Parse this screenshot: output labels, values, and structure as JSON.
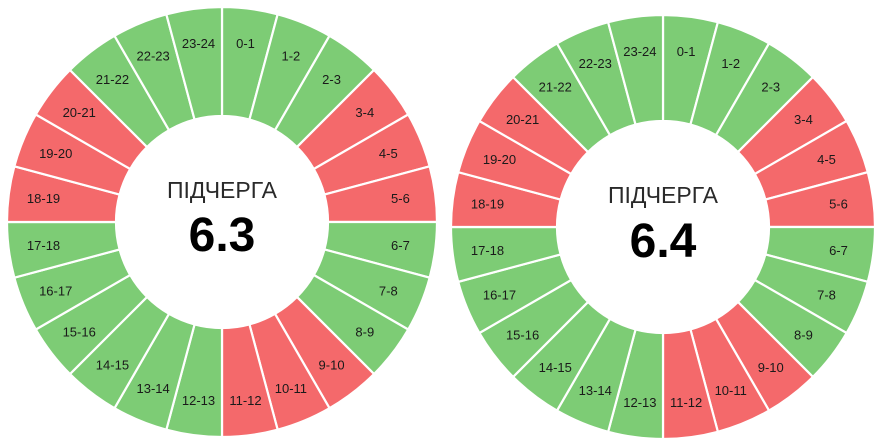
{
  "colors": {
    "on": "#7dcc75",
    "off": "#f4696b",
    "separator": "#ffffff",
    "background": "#ffffff"
  },
  "hour_labels": [
    "0-1",
    "1-2",
    "2-3",
    "3-4",
    "4-5",
    "5-6",
    "6-7",
    "7-8",
    "8-9",
    "9-10",
    "10-11",
    "11-12",
    "12-13",
    "13-14",
    "14-15",
    "15-16",
    "16-17",
    "17-18",
    "18-19",
    "19-20",
    "20-21",
    "21-22",
    "22-23",
    "23-24"
  ],
  "wheels": [
    {
      "title": "ПІДЧЕРГА",
      "value": "6.3",
      "segments": [
        "on",
        "on",
        "on",
        "off",
        "off",
        "off",
        "on",
        "on",
        "on",
        "off",
        "off",
        "off",
        "on",
        "on",
        "on",
        "on",
        "on",
        "on",
        "off",
        "off",
        "off",
        "on",
        "on",
        "on"
      ]
    },
    {
      "title": "ПІДЧЕРГА",
      "value": "6.4",
      "segments": [
        "on",
        "on",
        "on",
        "off",
        "off",
        "off",
        "on",
        "on",
        "on",
        "off",
        "off",
        "off",
        "on",
        "on",
        "on",
        "on",
        "on",
        "on",
        "off",
        "off",
        "off",
        "on",
        "on",
        "on"
      ]
    }
  ]
}
